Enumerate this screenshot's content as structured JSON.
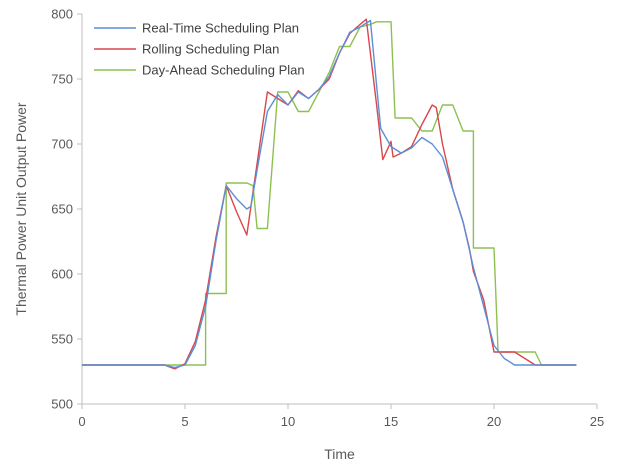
{
  "chart_data": {
    "type": "line",
    "title": "",
    "xlabel": "Time",
    "ylabel": "Thermal Power Unit Output Power",
    "xlim": [
      0,
      25
    ],
    "ylim": [
      500,
      800
    ],
    "xticks": [
      "0",
      "5",
      "10",
      "15",
      "20",
      "25"
    ],
    "yticks": [
      "500",
      "550",
      "600",
      "650",
      "700",
      "750",
      "800"
    ],
    "grid": false,
    "legend_position": "top-left",
    "series": [
      {
        "name": "Real-Time Scheduling Plan",
        "color": "#5b8fd6",
        "points": [
          [
            0,
            530
          ],
          [
            4,
            530
          ],
          [
            4.5,
            528
          ],
          [
            5,
            530
          ],
          [
            5.5,
            545
          ],
          [
            6,
            575
          ],
          [
            6.5,
            625
          ],
          [
            7,
            668
          ],
          [
            7.5,
            658
          ],
          [
            8,
            650
          ],
          [
            8.2,
            652
          ],
          [
            8.5,
            680
          ],
          [
            9,
            725
          ],
          [
            9.5,
            738
          ],
          [
            10,
            730
          ],
          [
            10.5,
            740
          ],
          [
            11,
            735
          ],
          [
            11.5,
            742
          ],
          [
            12,
            752
          ],
          [
            12.5,
            770
          ],
          [
            13,
            786
          ],
          [
            13.5,
            790
          ],
          [
            14,
            795
          ],
          [
            14.5,
            712
          ],
          [
            15,
            698
          ],
          [
            15.5,
            693
          ],
          [
            16,
            697
          ],
          [
            16.5,
            705
          ],
          [
            17,
            700
          ],
          [
            17.5,
            690
          ],
          [
            18,
            665
          ],
          [
            18.5,
            640
          ],
          [
            19,
            605
          ],
          [
            19.5,
            575
          ],
          [
            20,
            545
          ],
          [
            20.5,
            535
          ],
          [
            21,
            530
          ],
          [
            22,
            530
          ],
          [
            23,
            530
          ],
          [
            24,
            530
          ]
        ]
      },
      {
        "name": "Rolling Scheduling Plan",
        "color": "#d9464b",
        "points": [
          [
            0,
            530
          ],
          [
            4,
            530
          ],
          [
            4.5,
            527
          ],
          [
            5,
            531
          ],
          [
            5.5,
            548
          ],
          [
            6,
            580
          ],
          [
            6.5,
            628
          ],
          [
            7,
            668
          ],
          [
            7.5,
            648
          ],
          [
            8,
            630
          ],
          [
            8.5,
            685
          ],
          [
            9,
            740
          ],
          [
            9.5,
            735
          ],
          [
            10,
            730
          ],
          [
            10.5,
            741
          ],
          [
            11,
            735
          ],
          [
            11.5,
            742
          ],
          [
            12,
            750
          ],
          [
            12.5,
            770
          ],
          [
            13,
            785
          ],
          [
            13.5,
            792
          ],
          [
            13.8,
            796
          ],
          [
            14.3,
            730
          ],
          [
            14.6,
            688
          ],
          [
            15,
            702
          ],
          [
            15.1,
            690
          ],
          [
            15.5,
            693
          ],
          [
            16,
            698
          ],
          [
            16.5,
            715
          ],
          [
            17,
            730
          ],
          [
            17.2,
            728
          ],
          [
            17.5,
            700
          ],
          [
            18,
            665
          ],
          [
            18.5,
            640
          ],
          [
            18.8,
            620
          ],
          [
            19,
            602
          ],
          [
            19.5,
            580
          ],
          [
            20,
            540
          ],
          [
            20.5,
            540
          ],
          [
            21,
            540
          ],
          [
            21.5,
            535
          ],
          [
            22,
            530
          ],
          [
            23,
            530
          ],
          [
            24,
            530
          ]
        ]
      },
      {
        "name": "Day-Ahead Scheduling Plan",
        "color": "#8cc152",
        "points": [
          [
            0,
            530
          ],
          [
            6,
            530
          ],
          [
            6,
            585
          ],
          [
            7,
            585
          ],
          [
            7,
            670
          ],
          [
            8,
            670
          ],
          [
            8.3,
            668
          ],
          [
            8.5,
            635
          ],
          [
            9,
            635
          ],
          [
            9.5,
            740
          ],
          [
            10,
            740
          ],
          [
            10.5,
            725
          ],
          [
            11,
            725
          ],
          [
            11.5,
            740
          ],
          [
            12,
            755
          ],
          [
            12.5,
            775
          ],
          [
            13,
            775
          ],
          [
            13.5,
            790
          ],
          [
            14,
            792
          ],
          [
            14.3,
            794
          ],
          [
            15,
            794
          ],
          [
            15.2,
            720
          ],
          [
            16,
            720
          ],
          [
            16.5,
            710
          ],
          [
            17,
            710
          ],
          [
            17.5,
            730
          ],
          [
            18,
            730
          ],
          [
            18.5,
            710
          ],
          [
            19,
            710
          ],
          [
            19,
            620
          ],
          [
            20,
            620
          ],
          [
            20.2,
            540
          ],
          [
            21,
            540
          ],
          [
            21.5,
            540
          ],
          [
            22,
            540
          ],
          [
            22.3,
            530
          ],
          [
            24,
            530
          ]
        ]
      }
    ]
  }
}
